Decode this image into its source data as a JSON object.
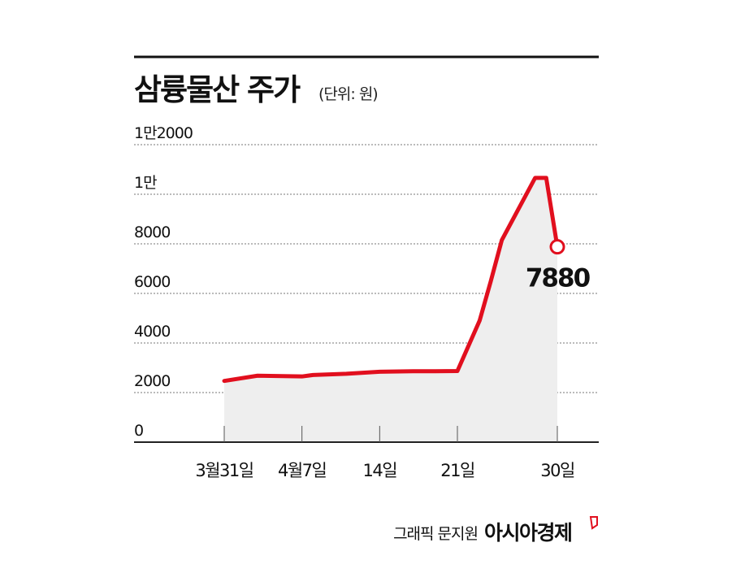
{
  "header": {
    "title": "삼륭물산 주가",
    "unit": "(단위: 원)"
  },
  "footer": {
    "credit": "그래픽 문지원",
    "brand": "아시아경제"
  },
  "colors": {
    "line": "#e10f1e",
    "area": "#eeeeee",
    "grid": "#777777",
    "axis": "#222222"
  },
  "chart_data": {
    "type": "area",
    "title": "삼륭물산 주가",
    "unit": "(단위: 원)",
    "ylim": [
      0,
      12000
    ],
    "ytick_values": [
      0,
      2000,
      4000,
      6000,
      8000,
      10000,
      12000
    ],
    "ytick_labels": [
      "0",
      "2000",
      "4000",
      "6000",
      "8000",
      "1만",
      "1만2000"
    ],
    "grid": true,
    "xlim": [
      "2023-03-31",
      "2023-04-30"
    ],
    "xticks": [
      {
        "date": "2023-03-31",
        "label": "3월31일"
      },
      {
        "date": "2023-04-07",
        "label": "4월7일"
      },
      {
        "date": "2023-04-14",
        "label": "14일"
      },
      {
        "date": "2023-04-21",
        "label": "21일"
      },
      {
        "date": "2023-04-30",
        "label": "30일"
      }
    ],
    "series": [
      {
        "points": [
          {
            "date": "2023-03-31",
            "value": 2470
          },
          {
            "date": "2023-04-03",
            "value": 2680
          },
          {
            "date": "2023-04-07",
            "value": 2650
          },
          {
            "date": "2023-04-08",
            "value": 2710
          },
          {
            "date": "2023-04-11",
            "value": 2760
          },
          {
            "date": "2023-04-14",
            "value": 2840
          },
          {
            "date": "2023-04-17",
            "value": 2860
          },
          {
            "date": "2023-04-19",
            "value": 2860
          },
          {
            "date": "2023-04-21",
            "value": 2870
          },
          {
            "date": "2023-04-23",
            "value": 4900
          },
          {
            "date": "2023-04-24",
            "value": 6480
          },
          {
            "date": "2023-04-25",
            "value": 8150
          },
          {
            "date": "2023-04-28",
            "value": 10660
          },
          {
            "date": "2023-04-29",
            "value": 10660
          },
          {
            "date": "2023-04-30",
            "value": 7880
          }
        ]
      }
    ],
    "callout": {
      "date": "2023-04-30",
      "value": 7880,
      "label": "7880"
    }
  }
}
